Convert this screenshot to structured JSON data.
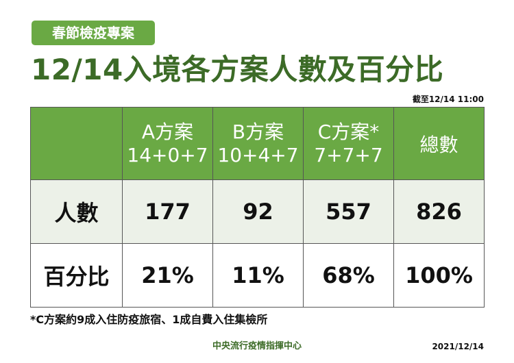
{
  "header": {
    "tag": "春節檢疫專案",
    "title": "12/14入境各方案人數及百分比",
    "as_of": "截至12/14 11:00"
  },
  "table": {
    "columns": [
      {
        "name": "A方案",
        "detail": "14+0+7"
      },
      {
        "name": "B方案",
        "detail": "10+4+7"
      },
      {
        "name": "C方案*",
        "detail": "7+7+7"
      },
      {
        "name": "總數",
        "detail": ""
      }
    ],
    "rows": [
      {
        "label": "人數",
        "values": [
          "177",
          "92",
          "557",
          "826"
        ]
      },
      {
        "label": "百分比",
        "values": [
          "21%",
          "11%",
          "68%",
          "100%"
        ]
      }
    ]
  },
  "footnote": "*C方案約9成入住防疫旅宿、1成自費入住集檢所",
  "footer": {
    "org": "中央流行疫情指揮中心",
    "date": "2021/12/14"
  },
  "colors": {
    "accent": "#6aa944",
    "title": "#3c6b27",
    "row_tint": "#ecf1e8"
  }
}
